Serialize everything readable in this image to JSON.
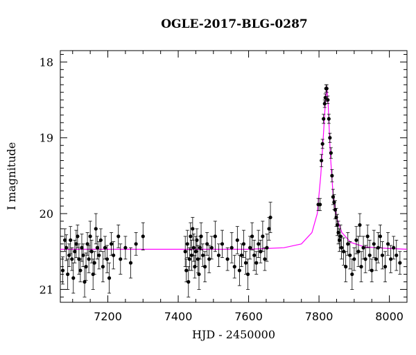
{
  "chart_data": {
    "type": "scatter",
    "title": "OGLE-2017-BLG-0287",
    "xlabel": "HJD - 2450000",
    "ylabel": "I magnitude",
    "xlim": [
      7065,
      8050
    ],
    "ylim": [
      21.17,
      17.85
    ],
    "y_inverted": true,
    "x_ticks": [
      7200,
      7400,
      7600,
      7800,
      8000
    ],
    "y_ticks": [
      18,
      19,
      20,
      21
    ],
    "grid": false,
    "legend": "none",
    "colors": {
      "points": "#000000",
      "model": "#ff00ff"
    },
    "model_curve": {
      "name": "model",
      "baseline_mag": 20.47,
      "points": [
        [
          7065,
          20.47
        ],
        [
          7600,
          20.47
        ],
        [
          7700,
          20.45
        ],
        [
          7750,
          20.4
        ],
        [
          7780,
          20.25
        ],
        [
          7795,
          20.0
        ],
        [
          7805,
          19.5
        ],
        [
          7812,
          19.0
        ],
        [
          7818,
          18.55
        ],
        [
          7822,
          18.32
        ],
        [
          7826,
          18.55
        ],
        [
          7832,
          19.2
        ],
        [
          7840,
          19.75
        ],
        [
          7850,
          20.05
        ],
        [
          7865,
          20.25
        ],
        [
          7890,
          20.38
        ],
        [
          7930,
          20.44
        ],
        [
          8000,
          20.46
        ],
        [
          8050,
          20.47
        ]
      ]
    },
    "series": [
      {
        "points": [
          [
            7072,
            20.75,
            0.18
          ],
          [
            7078,
            20.35,
            0.15
          ],
          [
            7082,
            20.45,
            0.17
          ],
          [
            7086,
            20.8,
            0.2
          ],
          [
            7090,
            20.55,
            0.15
          ],
          [
            7094,
            20.35,
            0.18
          ],
          [
            7098,
            20.6,
            0.15
          ],
          [
            7102,
            20.85,
            0.2
          ],
          [
            7106,
            20.5,
            0.15
          ],
          [
            7110,
            20.4,
            0.18
          ],
          [
            7114,
            20.3,
            0.15
          ],
          [
            7118,
            20.6,
            0.2
          ],
          [
            7122,
            20.75,
            0.15
          ],
          [
            7126,
            20.45,
            0.18
          ],
          [
            7130,
            20.55,
            0.15
          ],
          [
            7134,
            20.9,
            0.2
          ],
          [
            7138,
            20.7,
            0.18
          ],
          [
            7142,
            20.4,
            0.15
          ],
          [
            7146,
            20.6,
            0.18
          ],
          [
            7150,
            20.3,
            0.2
          ],
          [
            7154,
            20.5,
            0.15
          ],
          [
            7158,
            20.8,
            0.2
          ],
          [
            7162,
            20.65,
            0.15
          ],
          [
            7166,
            20.2,
            0.2
          ],
          [
            7170,
            20.45,
            0.15
          ],
          [
            7175,
            20.55,
            0.18
          ],
          [
            7180,
            20.35,
            0.15
          ],
          [
            7186,
            20.7,
            0.2
          ],
          [
            7192,
            20.45,
            0.15
          ],
          [
            7198,
            20.6,
            0.18
          ],
          [
            7204,
            20.85,
            0.2
          ],
          [
            7210,
            20.4,
            0.15
          ],
          [
            7216,
            20.55,
            0.18
          ],
          [
            7230,
            20.3,
            0.15
          ],
          [
            7236,
            20.6,
            0.2
          ],
          [
            7250,
            20.45,
            0.15
          ],
          [
            7265,
            20.65,
            0.2
          ],
          [
            7280,
            20.4,
            0.15
          ],
          [
            7300,
            20.3,
            0.18
          ],
          [
            7420,
            20.5,
            0.2
          ],
          [
            7423,
            20.75,
            0.15
          ],
          [
            7426,
            20.4,
            0.18
          ],
          [
            7429,
            20.9,
            0.2
          ],
          [
            7432,
            20.6,
            0.15
          ],
          [
            7435,
            20.3,
            0.18
          ],
          [
            7438,
            20.55,
            0.2
          ],
          [
            7441,
            20.2,
            0.15
          ],
          [
            7444,
            20.45,
            0.18
          ],
          [
            7447,
            20.7,
            0.15
          ],
          [
            7450,
            20.5,
            0.2
          ],
          [
            7453,
            20.35,
            0.15
          ],
          [
            7456,
            20.6,
            0.18
          ],
          [
            7459,
            20.8,
            0.2
          ],
          [
            7462,
            20.45,
            0.15
          ],
          [
            7465,
            20.3,
            0.18
          ],
          [
            7470,
            20.55,
            0.15
          ],
          [
            7476,
            20.7,
            0.2
          ],
          [
            7482,
            20.4,
            0.15
          ],
          [
            7488,
            20.6,
            0.18
          ],
          [
            7495,
            20.45,
            0.15
          ],
          [
            7505,
            20.3,
            0.2
          ],
          [
            7515,
            20.55,
            0.15
          ],
          [
            7525,
            20.4,
            0.18
          ],
          [
            7540,
            20.6,
            0.15
          ],
          [
            7552,
            20.45,
            0.2
          ],
          [
            7560,
            20.7,
            0.15
          ],
          [
            7568,
            20.35,
            0.18
          ],
          [
            7574,
            20.75,
            0.2
          ],
          [
            7580,
            20.55,
            0.15
          ],
          [
            7586,
            20.4,
            0.18
          ],
          [
            7592,
            20.65,
            0.15
          ],
          [
            7598,
            20.8,
            0.2
          ],
          [
            7604,
            20.45,
            0.15
          ],
          [
            7610,
            20.3,
            0.18
          ],
          [
            7616,
            20.55,
            0.2
          ],
          [
            7622,
            20.65,
            0.15
          ],
          [
            7628,
            20.4,
            0.18
          ],
          [
            7634,
            20.5,
            0.15
          ],
          [
            7640,
            20.3,
            0.2
          ],
          [
            7646,
            20.6,
            0.15
          ],
          [
            7652,
            20.45,
            0.18
          ],
          [
            7658,
            20.2,
            0.15
          ],
          [
            7662,
            20.05,
            0.2
          ],
          [
            7798,
            19.88,
            0.08
          ],
          [
            7803,
            19.88,
            0.08
          ],
          [
            7807,
            19.3,
            0.08
          ],
          [
            7810,
            19.08,
            0.06
          ],
          [
            7813,
            18.75,
            0.06
          ],
          [
            7816,
            18.55,
            0.05
          ],
          [
            7818,
            18.47,
            0.05
          ],
          [
            7820,
            18.35,
            0.05
          ],
          [
            7822,
            18.35,
            0.05
          ],
          [
            7825,
            18.5,
            0.05
          ],
          [
            7828,
            18.75,
            0.06
          ],
          [
            7831,
            19.0,
            0.06
          ],
          [
            7834,
            19.2,
            0.07
          ],
          [
            7837,
            19.5,
            0.08
          ],
          [
            7840,
            19.78,
            0.1
          ],
          [
            7843,
            19.85,
            0.1
          ],
          [
            7846,
            19.95,
            0.12
          ],
          [
            7849,
            20.05,
            0.12
          ],
          [
            7852,
            20.15,
            0.14
          ],
          [
            7855,
            20.25,
            0.15
          ],
          [
            7858,
            20.35,
            0.15
          ],
          [
            7861,
            20.3,
            0.15
          ],
          [
            7864,
            20.45,
            0.15
          ],
          [
            7870,
            20.5,
            0.18
          ],
          [
            7876,
            20.7,
            0.2
          ],
          [
            7882,
            20.4,
            0.15
          ],
          [
            7888,
            20.55,
            0.18
          ],
          [
            7894,
            20.8,
            0.2
          ],
          [
            7900,
            20.6,
            0.15
          ],
          [
            7906,
            20.35,
            0.18
          ],
          [
            7912,
            20.5,
            0.2
          ],
          [
            7916,
            20.15,
            0.15
          ],
          [
            7920,
            20.7,
            0.2
          ],
          [
            7926,
            20.45,
            0.15
          ],
          [
            7932,
            20.6,
            0.18
          ],
          [
            7938,
            20.3,
            0.15
          ],
          [
            7944,
            20.55,
            0.2
          ],
          [
            7950,
            20.75,
            0.15
          ],
          [
            7956,
            20.4,
            0.18
          ],
          [
            7962,
            20.6,
            0.15
          ],
          [
            7968,
            20.45,
            0.2
          ],
          [
            7974,
            20.3,
            0.15
          ],
          [
            7980,
            20.55,
            0.18
          ],
          [
            7988,
            20.7,
            0.2
          ],
          [
            7996,
            20.4,
            0.15
          ],
          [
            8004,
            20.6,
            0.18
          ],
          [
            8012,
            20.45,
            0.15
          ],
          [
            8020,
            20.55,
            0.2
          ],
          [
            8030,
            20.65,
            0.15
          ]
        ]
      }
    ]
  }
}
